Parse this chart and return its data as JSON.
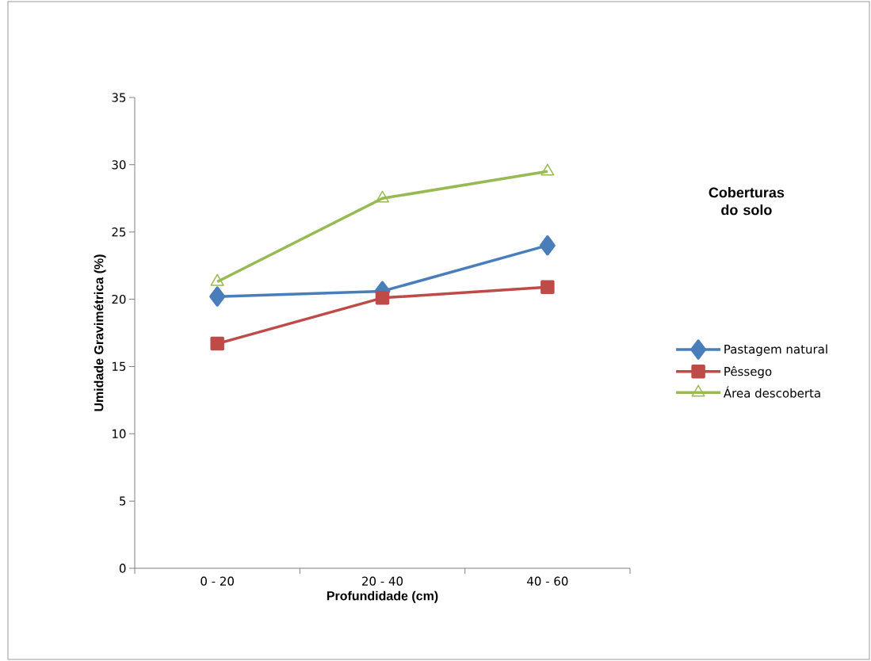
{
  "chart_data": {
    "type": "line",
    "xlabel": "Profundidade (cm)",
    "ylabel": "Umidade Gravimétrica (%)",
    "legend_title": "Coberturas do solo",
    "categories": [
      "0 - 20",
      "20 - 40",
      "40 - 60"
    ],
    "series": [
      {
        "name": "Pastagem natural",
        "color": "#4a7ebb",
        "marker": "diamond",
        "values": [
          20.2,
          20.6,
          24.0
        ]
      },
      {
        "name": "Pêssego",
        "color": "#be4b48",
        "marker": "square",
        "values": [
          16.7,
          20.1,
          20.9
        ]
      },
      {
        "name": "Área descoberta",
        "color": "#98b954",
        "marker": "triangle",
        "values": [
          21.3,
          27.5,
          29.5
        ]
      }
    ],
    "ylim": [
      0,
      35
    ],
    "yticks": [
      0,
      5,
      10,
      15,
      20,
      25,
      30,
      35
    ],
    "grid": false,
    "legend": "right",
    "line_style": "solid"
  }
}
